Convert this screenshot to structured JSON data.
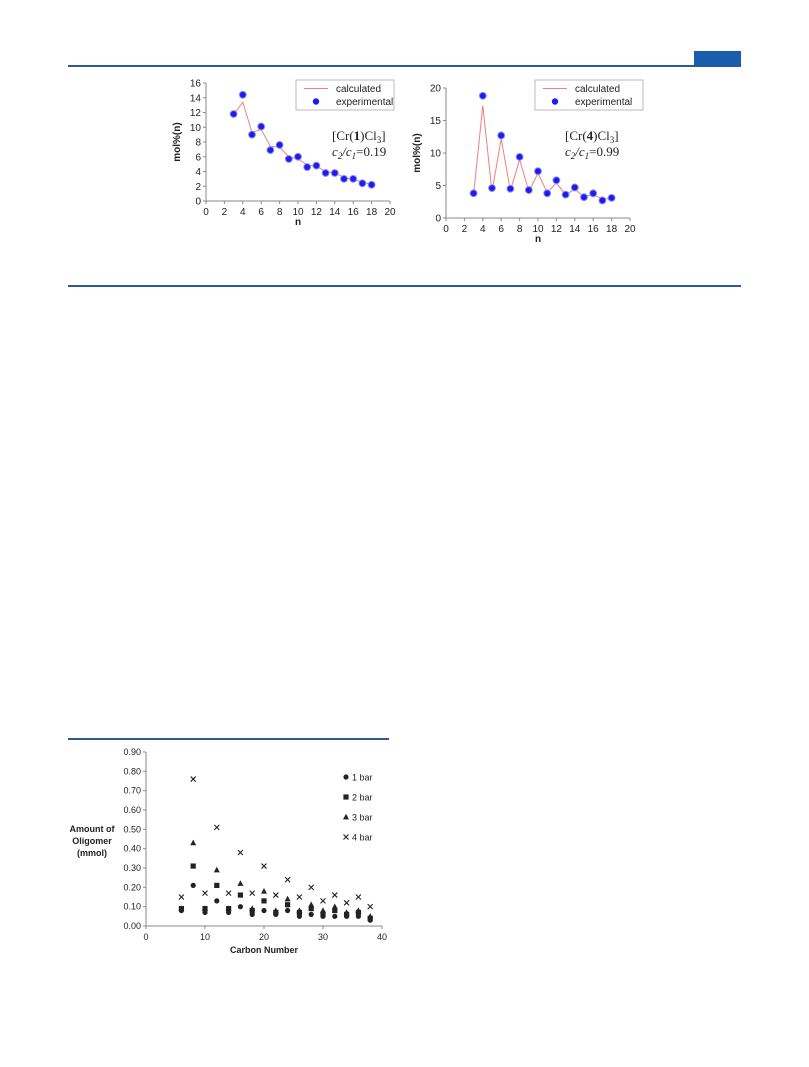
{
  "colors": {
    "rule": "#2f5b95",
    "tab": "#1a5cad",
    "calculated": "#f08080",
    "experimental": "#1a1aff",
    "experimental_edge": "#8a8ad8",
    "marker": "#222222"
  },
  "figure_a": {
    "left": {
      "chart_data": {
        "type": "line",
        "xlabel": "n",
        "ylabel": "mol%(n)",
        "xlim": [
          0,
          20
        ],
        "ylim": [
          0,
          16
        ],
        "xticks": [
          "0",
          "2",
          "4",
          "6",
          "8",
          "10",
          "12",
          "14",
          "16",
          "18",
          "20"
        ],
        "yticks": [
          "0",
          "2",
          "4",
          "6",
          "8",
          "10",
          "12",
          "14",
          "16"
        ],
        "legend_position": "top-right",
        "series": [
          {
            "name": "calculated",
            "style": "line",
            "x": [
              3,
              4,
              5,
              6,
              7,
              8,
              9,
              10,
              11,
              12,
              13,
              14,
              15,
              16,
              17,
              18
            ],
            "y": [
              11.7,
              13.4,
              9.3,
              9.7,
              7.4,
              7.3,
              6.0,
              5.7,
              4.9,
              4.7,
              4.0,
              3.8,
              3.2,
              2.9,
              2.6,
              2.2
            ]
          },
          {
            "name": "experimental",
            "style": "marker",
            "x": [
              3,
              4,
              5,
              6,
              7,
              8,
              9,
              10,
              11,
              12,
              13,
              14,
              15,
              16,
              17,
              18
            ],
            "y": [
              11.8,
              14.4,
              9.0,
              10.1,
              6.9,
              7.6,
              5.7,
              6.0,
              4.6,
              4.8,
              3.8,
              3.8,
              3.0,
              3.0,
              2.4,
              2.2
            ]
          }
        ]
      },
      "annotation": {
        "line1": "[Cr(1)Cl3]",
        "line2": "c2/c1=0.19"
      }
    },
    "right": {
      "chart_data": {
        "type": "line",
        "xlabel": "n",
        "ylabel": "mol%(n)",
        "xlim": [
          0,
          20
        ],
        "ylim": [
          0,
          20
        ],
        "xticks": [
          "0",
          "2",
          "4",
          "6",
          "8",
          "10",
          "12",
          "14",
          "16",
          "18",
          "20"
        ],
        "yticks": [
          "0",
          "5",
          "10",
          "15",
          "20"
        ],
        "legend_position": "top-right",
        "series": [
          {
            "name": "calculated",
            "style": "line",
            "x": [
              3,
              4,
              5,
              6,
              7,
              8,
              9,
              10,
              11,
              12,
              13,
              14,
              15,
              16,
              17,
              18
            ],
            "y": [
              3.6,
              17.3,
              4.0,
              12.2,
              4.2,
              9.0,
              4.1,
              6.9,
              3.9,
              5.4,
              3.6,
              4.4,
              3.3,
              3.6,
              2.9,
              3.0
            ]
          },
          {
            "name": "experimental",
            "style": "marker",
            "x": [
              3,
              4,
              5,
              6,
              7,
              8,
              9,
              10,
              11,
              12,
              13,
              14,
              15,
              16,
              17,
              18
            ],
            "y": [
              3.8,
              18.8,
              4.6,
              12.7,
              4.5,
              9.4,
              4.3,
              7.2,
              3.8,
              5.8,
              3.6,
              4.7,
              3.2,
              3.8,
              2.7,
              3.1
            ]
          }
        ]
      },
      "annotation": {
        "line1": "[Cr(4)Cl3]",
        "line2": "c2/c1=0.99"
      }
    }
  },
  "figure_b": {
    "chart_data": {
      "type": "scatter",
      "xlabel": "Carbon Number",
      "ylabel_line1": "Amount of",
      "ylabel_line2": "Oligomer",
      "ylabel_line3": "(mmol)",
      "xlim": [
        0,
        40
      ],
      "ylim": [
        0,
        0.9
      ],
      "xticks": [
        "0",
        "10",
        "20",
        "30",
        "40"
      ],
      "yticks": [
        "0.00",
        "0.10",
        "0.20",
        "0.30",
        "0.40",
        "0.50",
        "0.60",
        "0.70",
        "0.80",
        "0.90"
      ],
      "legend_position": "right",
      "x": [
        6,
        8,
        10,
        12,
        14,
        16,
        18,
        20,
        22,
        24,
        26,
        28,
        30,
        32,
        34,
        36,
        38
      ],
      "series": [
        {
          "name": "1 bar",
          "marker": "circle",
          "y": [
            0.08,
            0.21,
            0.07,
            0.13,
            0.07,
            0.1,
            0.06,
            0.08,
            0.06,
            0.08,
            0.05,
            0.06,
            0.05,
            0.05,
            0.05,
            0.05,
            0.03
          ]
        },
        {
          "name": "2 bar",
          "marker": "square",
          "y": [
            0.09,
            0.31,
            0.09,
            0.21,
            0.09,
            0.16,
            0.08,
            0.13,
            0.07,
            0.11,
            0.07,
            0.09,
            0.06,
            0.08,
            0.06,
            0.07,
            0.04
          ]
        },
        {
          "name": "3 bar",
          "marker": "triangle",
          "y": [
            0.09,
            0.43,
            0.09,
            0.29,
            0.09,
            0.22,
            0.09,
            0.18,
            0.08,
            0.14,
            0.08,
            0.11,
            0.08,
            0.1,
            0.07,
            0.08,
            0.05
          ]
        },
        {
          "name": "4 bar",
          "marker": "x",
          "y": [
            0.15,
            0.76,
            0.17,
            0.51,
            0.17,
            0.38,
            0.17,
            0.31,
            0.16,
            0.24,
            0.15,
            0.2,
            0.13,
            0.16,
            0.12,
            0.15,
            0.1
          ]
        }
      ]
    }
  }
}
